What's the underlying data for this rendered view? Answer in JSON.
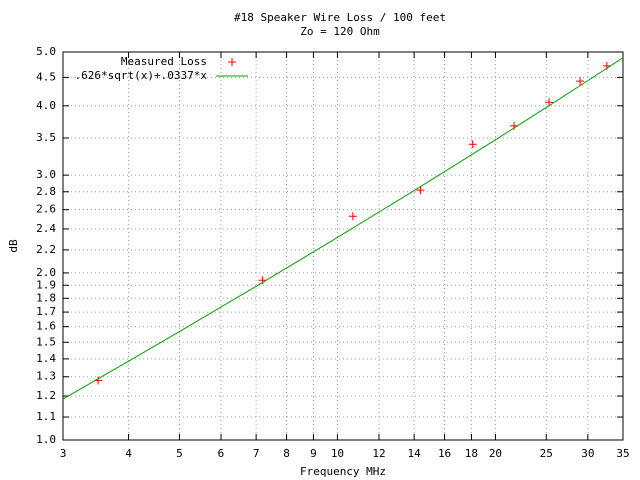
{
  "chart_data": {
    "type": "line",
    "title": "#18 Speaker Wire Loss / 100 feet",
    "subtitle": "Zo = 120 Ohm",
    "x_label": "Frequency MHz",
    "y_label": "dB",
    "xscale": "log",
    "yscale": "log",
    "grid": true,
    "legend": "top-left",
    "xlim": [
      3,
      35
    ],
    "xticks": [
      3,
      4,
      5,
      6,
      7,
      8,
      9,
      10,
      12,
      14,
      16,
      18,
      20,
      25,
      30,
      35
    ],
    "ylim": [
      1,
      5
    ],
    "yticks": [
      {
        "value": 1,
        "label": "1.0"
      },
      1.1,
      1.2,
      1.3,
      1.4,
      1.5,
      1.6,
      1.7,
      1.8,
      1.9,
      {
        "value": 2,
        "label": "2.0"
      },
      2.2,
      2.4,
      2.6,
      2.8,
      {
        "value": 3,
        "label": "3.0"
      },
      3.5,
      {
        "value": 4,
        "label": "4.0"
      },
      4.5,
      {
        "value": 5,
        "label": "5.0"
      }
    ],
    "series": [
      {
        "name": "Measured Loss",
        "color": "#ff0000",
        "style": "points",
        "x": [
          3.5,
          7.2,
          10.7,
          14.4,
          18.1,
          21.7,
          25.3,
          29.0,
          32.6
        ],
        "values": [
          1.28,
          1.94,
          2.53,
          2.82,
          3.41,
          3.68,
          4.06,
          4.43,
          4.72
        ]
      },
      {
        "name": ".626*sqrt(x)+.0337*x",
        "color": "#00a000",
        "style": "lines",
        "x": [
          3,
          4,
          5,
          7,
          10,
          14,
          20,
          25,
          30,
          35
        ],
        "values": [
          1.185,
          1.387,
          1.568,
          1.892,
          2.317,
          2.814,
          3.474,
          3.973,
          4.44,
          4.883
        ]
      }
    ]
  }
}
